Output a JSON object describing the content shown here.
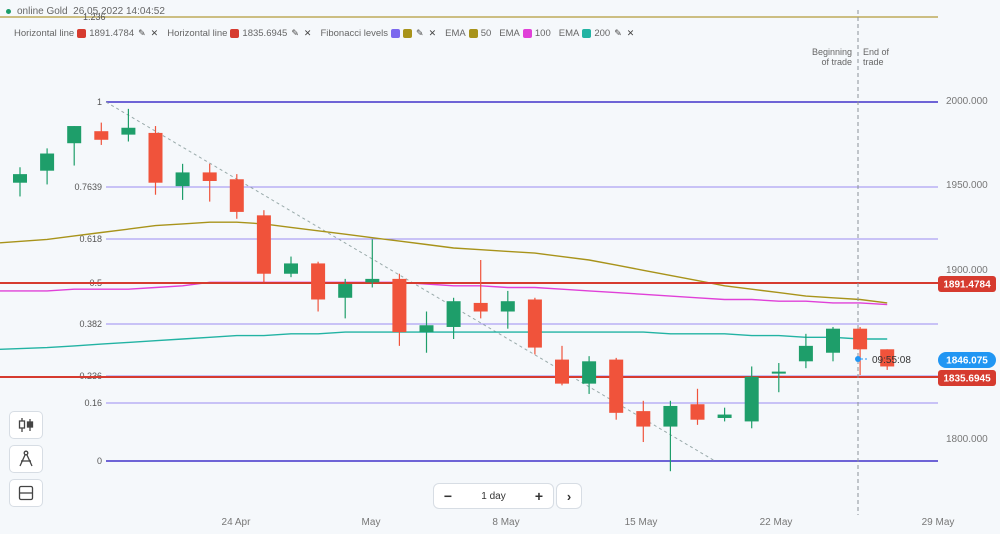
{
  "header": {
    "instrument": "online Gold",
    "datetime": "26.05.2022 14:04:52"
  },
  "legend": [
    {
      "name": "Horizontal line",
      "value": "1891.4784",
      "color": "#d63b2f"
    },
    {
      "name": "Horizontal line",
      "value": "1835.6945",
      "color": "#d63b2f"
    },
    {
      "name": "Fibonacci levels",
      "color": "#7b68ee",
      "color2": "#a8931a"
    },
    {
      "name": "EMA",
      "value": "50",
      "color": "#a8931a"
    },
    {
      "name": "EMA",
      "value": "100",
      "color": "#e040d8"
    },
    {
      "name": "EMA",
      "value": "200",
      "color": "#22b3a3"
    }
  ],
  "icons": {
    "edit": "pencil-icon",
    "remove": "close-icon"
  },
  "price_axis": {
    "labels": [
      "2000.000",
      "1950.000",
      "1900.000",
      "1800.000"
    ]
  },
  "time_axis": {
    "labels": [
      "24 Apr",
      "May",
      "8 May",
      "15 May",
      "22 May",
      "29 May"
    ]
  },
  "top_line_label": "1.236",
  "fib_levels": [
    "1",
    "0.7639",
    "0.618",
    "0.5",
    "0.382",
    "0.236",
    "0.16",
    "0"
  ],
  "price_tags": {
    "line1": {
      "value": "1891.4784",
      "color": "#d63b2f"
    },
    "current": {
      "value": "1846.075",
      "color": "#2196f3"
    },
    "line2": {
      "value": "1835.6945",
      "color": "#d63b2f"
    }
  },
  "countdown": "09:55:08",
  "trade_flags": {
    "begin": "Beginning of trade",
    "end": "End of trade"
  },
  "period": {
    "label": "1 day",
    "minus": "−",
    "plus": "+",
    "next": "›"
  },
  "colors": {
    "up": "#1e9e6a",
    "down": "#f0533b",
    "fib": "#7b68ee",
    "fib_strong": "#5b4fd0",
    "hline": "#d63b2f",
    "ema50": "#a8931a",
    "ema100": "#e040d8",
    "ema200": "#22b3a3",
    "top_line": "#b59b3a"
  },
  "chart_data": {
    "type": "candlestick",
    "title": "online Gold",
    "candles": [
      {
        "o": 1953,
        "h": 1962,
        "l": 1945,
        "c": 1958
      },
      {
        "o": 1960,
        "h": 1973,
        "l": 1952,
        "c": 1970
      },
      {
        "o": 1976,
        "h": 1986,
        "l": 1963,
        "c": 1986
      },
      {
        "o": 1983,
        "h": 1988,
        "l": 1975,
        "c": 1978
      },
      {
        "o": 1981,
        "h": 1996,
        "l": 1977,
        "c": 1985
      },
      {
        "o": 1982,
        "h": 1986,
        "l": 1946,
        "c": 1953
      },
      {
        "o": 1951,
        "h": 1964,
        "l": 1943,
        "c": 1959
      },
      {
        "o": 1959,
        "h": 1964,
        "l": 1942,
        "c": 1954
      },
      {
        "o": 1955,
        "h": 1958,
        "l": 1932,
        "c": 1936
      },
      {
        "o": 1934,
        "h": 1937,
        "l": 1895,
        "c": 1900
      },
      {
        "o": 1900,
        "h": 1910,
        "l": 1898,
        "c": 1906
      },
      {
        "o": 1906,
        "h": 1907,
        "l": 1878,
        "c": 1885
      },
      {
        "o": 1886,
        "h": 1897,
        "l": 1874,
        "c": 1894
      },
      {
        "o": 1895,
        "h": 1920,
        "l": 1892,
        "c": 1897
      },
      {
        "o": 1897,
        "h": 1900,
        "l": 1858,
        "c": 1866
      },
      {
        "o": 1866,
        "h": 1878,
        "l": 1854,
        "c": 1870
      },
      {
        "o": 1869,
        "h": 1886,
        "l": 1862,
        "c": 1884
      },
      {
        "o": 1883,
        "h": 1908,
        "l": 1874,
        "c": 1878
      },
      {
        "o": 1878,
        "h": 1890,
        "l": 1868,
        "c": 1884
      },
      {
        "o": 1885,
        "h": 1886,
        "l": 1853,
        "c": 1857
      },
      {
        "o": 1850,
        "h": 1858,
        "l": 1835,
        "c": 1836
      },
      {
        "o": 1836,
        "h": 1852,
        "l": 1830,
        "c": 1849
      },
      {
        "o": 1850,
        "h": 1851,
        "l": 1815,
        "c": 1819
      },
      {
        "o": 1820,
        "h": 1826,
        "l": 1802,
        "c": 1811
      },
      {
        "o": 1811,
        "h": 1826,
        "l": 1785,
        "c": 1823
      },
      {
        "o": 1824,
        "h": 1833,
        "l": 1812,
        "c": 1815
      },
      {
        "o": 1816,
        "h": 1822,
        "l": 1814,
        "c": 1818
      },
      {
        "o": 1814,
        "h": 1846,
        "l": 1810,
        "c": 1840
      },
      {
        "o": 1842,
        "h": 1848,
        "l": 1831,
        "c": 1843
      },
      {
        "o": 1849,
        "h": 1865,
        "l": 1845,
        "c": 1858
      },
      {
        "o": 1854,
        "h": 1869,
        "l": 1849,
        "c": 1868
      },
      {
        "o": 1868,
        "h": 1869,
        "l": 1841,
        "c": 1856
      },
      {
        "o": 1856,
        "h": 1856,
        "l": 1844,
        "c": 1846
      }
    ],
    "ema50": [
      1918,
      1920,
      1922,
      1924,
      1926,
      1928,
      1929,
      1930,
      1930,
      1929,
      1927,
      1925,
      1923,
      1921,
      1919,
      1917,
      1915,
      1914,
      1913,
      1912,
      1910,
      1908,
      1905,
      1902,
      1899,
      1896,
      1893,
      1891,
      1889,
      1887,
      1886,
      1885,
      1883
    ],
    "ema100": [
      1890,
      1890,
      1891,
      1891,
      1891,
      1892,
      1893,
      1895,
      1895,
      1895,
      1895,
      1895,
      1895,
      1895,
      1895,
      1894,
      1893,
      1893,
      1892,
      1892,
      1891,
      1890,
      1889,
      1888,
      1887,
      1886,
      1885,
      1885,
      1884,
      1884,
      1883,
      1883,
      1882
    ],
    "ema200": [
      1856,
      1857,
      1858,
      1859,
      1860,
      1861,
      1862,
      1863,
      1864,
      1864,
      1865,
      1865,
      1866,
      1866,
      1866,
      1866,
      1866,
      1866,
      1866,
      1866,
      1866,
      1866,
      1866,
      1866,
      1865,
      1865,
      1865,
      1864,
      1864,
      1863,
      1863,
      1862,
      1862
    ]
  }
}
